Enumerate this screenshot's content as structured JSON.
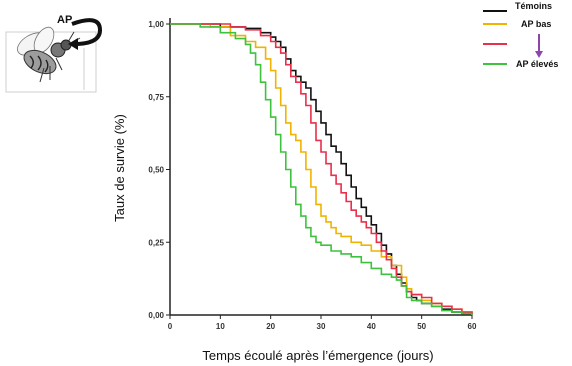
{
  "figure": {
    "ap_label": "AP",
    "bee_icon": "bee-icon"
  },
  "chart_data": {
    "type": "line",
    "title": "",
    "xlabel": "Temps écoulé après l’émergence (jours)",
    "ylabel": "Taux de survie (%)",
    "xlim": [
      0,
      60
    ],
    "ylim": [
      0,
      1
    ],
    "x_ticks": [
      "0",
      "10",
      "20",
      "30",
      "40",
      "50",
      "60"
    ],
    "y_ticks": [
      "0,00",
      "0,25",
      "0,50",
      "0,75",
      "1,00"
    ],
    "grid": false,
    "legend_position": "top-right",
    "legend_arrow_color": "#8e44ad",
    "series": [
      {
        "name": "Témoins",
        "color": "#111111",
        "points": [
          [
            0,
            1.0
          ],
          [
            10,
            0.99
          ],
          [
            15,
            0.985
          ],
          [
            18,
            0.97
          ],
          [
            20,
            0.955
          ],
          [
            21,
            0.94
          ],
          [
            22,
            0.92
          ],
          [
            23,
            0.88
          ],
          [
            24,
            0.84
          ],
          [
            25,
            0.82
          ],
          [
            26,
            0.8
          ],
          [
            27,
            0.78
          ],
          [
            28,
            0.74
          ],
          [
            29,
            0.7
          ],
          [
            30,
            0.66
          ],
          [
            31,
            0.62
          ],
          [
            32,
            0.58
          ],
          [
            33,
            0.56
          ],
          [
            34,
            0.52
          ],
          [
            35,
            0.48
          ],
          [
            36,
            0.44
          ],
          [
            37,
            0.4
          ],
          [
            38,
            0.37
          ],
          [
            39,
            0.34
          ],
          [
            40,
            0.31
          ],
          [
            41,
            0.28
          ],
          [
            42,
            0.24
          ],
          [
            43,
            0.21
          ],
          [
            44,
            0.17
          ],
          [
            45,
            0.14
          ],
          [
            46,
            0.11
          ],
          [
            47,
            0.08
          ],
          [
            48,
            0.06
          ],
          [
            49,
            0.05
          ],
          [
            50,
            0.04
          ],
          [
            52,
            0.03
          ],
          [
            54,
            0.02
          ],
          [
            56,
            0.01
          ],
          [
            58,
            0.005
          ],
          [
            60,
            0.0
          ]
        ]
      },
      {
        "name": "AP bas",
        "color": "#f0b400",
        "points": [
          [
            0,
            1.0
          ],
          [
            8,
            0.99
          ],
          [
            12,
            0.96
          ],
          [
            15,
            0.94
          ],
          [
            17,
            0.92
          ],
          [
            19,
            0.88
          ],
          [
            20,
            0.84
          ],
          [
            21,
            0.78
          ],
          [
            22,
            0.72
          ],
          [
            23,
            0.66
          ],
          [
            24,
            0.62
          ],
          [
            25,
            0.6
          ],
          [
            26,
            0.56
          ],
          [
            27,
            0.5
          ],
          [
            28,
            0.44
          ],
          [
            29,
            0.38
          ],
          [
            30,
            0.34
          ],
          [
            31,
            0.32
          ],
          [
            32,
            0.3
          ],
          [
            33,
            0.28
          ],
          [
            34,
            0.27
          ],
          [
            36,
            0.25
          ],
          [
            38,
            0.24
          ],
          [
            40,
            0.22
          ],
          [
            42,
            0.2
          ],
          [
            44,
            0.17
          ],
          [
            46,
            0.13
          ],
          [
            47,
            0.09
          ],
          [
            48,
            0.07
          ],
          [
            50,
            0.05
          ],
          [
            52,
            0.04
          ],
          [
            54,
            0.03
          ],
          [
            56,
            0.02
          ],
          [
            58,
            0.01
          ],
          [
            60,
            0.0
          ]
        ]
      },
      {
        "name": "",
        "color": "#e8304a",
        "points": [
          [
            0,
            1.0
          ],
          [
            12,
            0.99
          ],
          [
            15,
            0.98
          ],
          [
            18,
            0.96
          ],
          [
            20,
            0.94
          ],
          [
            21,
            0.92
          ],
          [
            22,
            0.9
          ],
          [
            23,
            0.86
          ],
          [
            24,
            0.82
          ],
          [
            25,
            0.8
          ],
          [
            26,
            0.76
          ],
          [
            27,
            0.72
          ],
          [
            28,
            0.66
          ],
          [
            29,
            0.6
          ],
          [
            30,
            0.56
          ],
          [
            31,
            0.52
          ],
          [
            32,
            0.48
          ],
          [
            33,
            0.45
          ],
          [
            34,
            0.42
          ],
          [
            35,
            0.39
          ],
          [
            36,
            0.36
          ],
          [
            37,
            0.34
          ],
          [
            38,
            0.32
          ],
          [
            39,
            0.3
          ],
          [
            40,
            0.28
          ],
          [
            41,
            0.25
          ],
          [
            42,
            0.22
          ],
          [
            43,
            0.19
          ],
          [
            44,
            0.16
          ],
          [
            45,
            0.13
          ],
          [
            46,
            0.1
          ],
          [
            47,
            0.08
          ],
          [
            48,
            0.07
          ],
          [
            50,
            0.06
          ],
          [
            52,
            0.04
          ],
          [
            54,
            0.03
          ],
          [
            56,
            0.02
          ],
          [
            58,
            0.01
          ],
          [
            60,
            0.0
          ]
        ]
      },
      {
        "name": "AP élevés",
        "color": "#3ec23e",
        "points": [
          [
            0,
            1.0
          ],
          [
            6,
            0.99
          ],
          [
            10,
            0.97
          ],
          [
            13,
            0.95
          ],
          [
            15,
            0.93
          ],
          [
            16,
            0.9
          ],
          [
            17,
            0.86
          ],
          [
            18,
            0.8
          ],
          [
            19,
            0.74
          ],
          [
            20,
            0.68
          ],
          [
            21,
            0.62
          ],
          [
            22,
            0.56
          ],
          [
            23,
            0.5
          ],
          [
            24,
            0.44
          ],
          [
            25,
            0.38
          ],
          [
            26,
            0.34
          ],
          [
            27,
            0.3
          ],
          [
            28,
            0.27
          ],
          [
            29,
            0.25
          ],
          [
            30,
            0.24
          ],
          [
            32,
            0.22
          ],
          [
            34,
            0.21
          ],
          [
            36,
            0.2
          ],
          [
            38,
            0.18
          ],
          [
            40,
            0.16
          ],
          [
            42,
            0.14
          ],
          [
            44,
            0.13
          ],
          [
            45,
            0.12
          ],
          [
            46,
            0.1
          ],
          [
            47,
            0.06
          ],
          [
            48,
            0.05
          ],
          [
            50,
            0.04
          ],
          [
            52,
            0.03
          ],
          [
            54,
            0.015
          ],
          [
            56,
            0.01
          ],
          [
            58,
            0.005
          ],
          [
            60,
            0.0
          ]
        ]
      }
    ]
  }
}
